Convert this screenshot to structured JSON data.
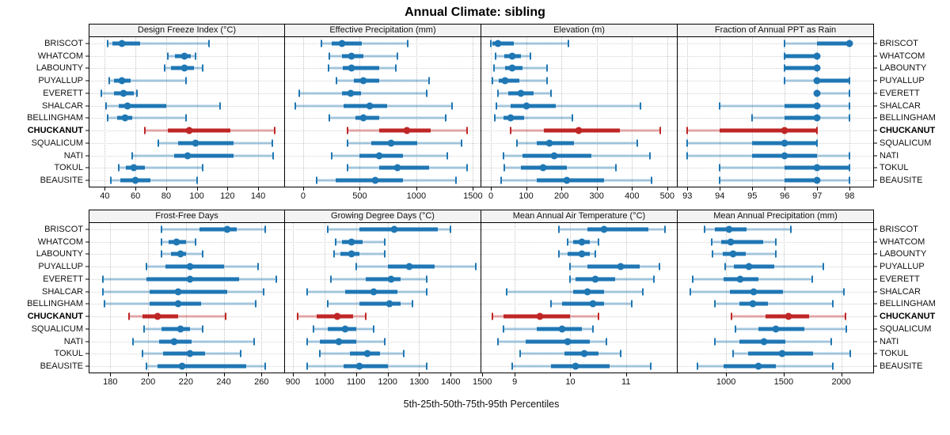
{
  "title": "Annual Climate: sibling",
  "caption": "5th-25th-50th-75th-95th Percentiles",
  "highlight_station": "CHUCKANUT",
  "colors": {
    "series": "#1f77b4",
    "highlight": "#bf2626",
    "band_alpha": 0.38,
    "header_bg": "#f3f3f3",
    "gridline": "#c4c4c4",
    "border": "#000000"
  },
  "stations": [
    "BRISCOT",
    "WHATCOM",
    "LABOUNTY",
    "PUYALLUP",
    "EVERETT",
    "SHALCAR",
    "BELLINGHAM",
    "CHUCKANUT",
    "SQUALICUM",
    "NATI",
    "TOKUL",
    "BEAUSITE"
  ],
  "chart_data": {
    "type": "percentile-range-dotplot",
    "percentiles": [
      5,
      25,
      50,
      75,
      95
    ],
    "legend_note": "thin light band = 5th-95th, thick band = 25th-75th, dot = 50th",
    "panels": [
      {
        "title": "Design Freeze Index (°C)",
        "grid": "top",
        "xlim": [
          30,
          157
        ],
        "ticks": [
          40,
          60,
          80,
          100,
          120,
          140
        ],
        "values": [
          [
            42,
            45,
            51,
            63,
            108
          ],
          [
            81,
            86,
            92,
            96,
            99
          ],
          [
            79,
            83,
            92,
            98,
            104
          ],
          [
            43,
            46,
            51,
            57,
            93
          ],
          [
            38,
            46,
            52,
            59,
            61
          ],
          [
            41,
            49,
            55,
            80,
            115
          ],
          [
            42,
            48,
            53,
            58,
            93
          ],
          [
            66,
            81,
            95,
            122,
            151
          ],
          [
            75,
            88,
            99,
            124,
            149
          ],
          [
            58,
            85,
            94,
            124,
            150
          ],
          [
            49,
            54,
            59,
            66,
            104
          ],
          [
            44,
            50,
            60,
            70,
            100
          ]
        ]
      },
      {
        "title": "Effective Precipitation (mm)",
        "grid": "top",
        "xlim": [
          -160,
          1560
        ],
        "ticks": [
          0,
          500,
          1000,
          1500
        ],
        "values": [
          [
            165,
            250,
            340,
            515,
            925
          ],
          [
            230,
            340,
            425,
            535,
            835
          ],
          [
            225,
            350,
            430,
            670,
            820
          ],
          [
            295,
            445,
            530,
            675,
            1115
          ],
          [
            -35,
            340,
            420,
            510,
            1095
          ],
          [
            -70,
            360,
            585,
            745,
            1315
          ],
          [
            230,
            465,
            535,
            675,
            1260
          ],
          [
            395,
            675,
            915,
            1130,
            1445
          ],
          [
            390,
            600,
            775,
            1005,
            1400
          ],
          [
            250,
            500,
            675,
            880,
            1275
          ],
          [
            390,
            670,
            835,
            1110,
            1445
          ],
          [
            120,
            285,
            635,
            885,
            1350
          ]
        ]
      },
      {
        "title": "Elevation (m)",
        "grid": "top",
        "xlim": [
          -27,
          525
        ],
        "ticks": [
          0,
          100,
          200,
          300,
          400,
          500
        ],
        "values": [
          [
            0,
            5,
            20,
            65,
            220
          ],
          [
            13,
            38,
            60,
            85,
            112
          ],
          [
            10,
            40,
            60,
            90,
            160
          ],
          [
            5,
            22,
            40,
            80,
            160
          ],
          [
            20,
            50,
            85,
            120,
            170
          ],
          [
            15,
            55,
            100,
            185,
            425
          ],
          [
            12,
            35,
            55,
            95,
            230
          ],
          [
            55,
            150,
            250,
            365,
            480
          ],
          [
            75,
            130,
            165,
            235,
            415
          ],
          [
            35,
            90,
            180,
            285,
            450
          ],
          [
            38,
            85,
            148,
            215,
            355
          ],
          [
            30,
            130,
            215,
            320,
            455
          ]
        ]
      },
      {
        "title": "Fraction of Annual PPT as Rain",
        "grid": "top",
        "xlim": [
          92.7,
          98.7
        ],
        "ticks": [
          93,
          94,
          95,
          96,
          97,
          98
        ],
        "values": [
          [
            96,
            97,
            98,
            98,
            98
          ],
          [
            96,
            96,
            97,
            97,
            97
          ],
          [
            96,
            96,
            97,
            97,
            97
          ],
          [
            96,
            97,
            97,
            98,
            98
          ],
          [
            97,
            97,
            97,
            97,
            98
          ],
          [
            94,
            96,
            97,
            97,
            98
          ],
          [
            95,
            96,
            97,
            97,
            98
          ],
          [
            93,
            94,
            96,
            97,
            97
          ],
          [
            93,
            95,
            96,
            97,
            97
          ],
          [
            93,
            95,
            96,
            97,
            98
          ],
          [
            94,
            96,
            97,
            98,
            98
          ],
          [
            94,
            96,
            97,
            97,
            98
          ]
        ]
      },
      {
        "title": "Frost-Free Days",
        "grid": "bottom",
        "xlim": [
          169,
          272
        ],
        "ticks": [
          180,
          200,
          220,
          240,
          260
        ],
        "values": [
          [
            207,
            227,
            242,
            247,
            262
          ],
          [
            207,
            211,
            215,
            220,
            225
          ],
          [
            207,
            212,
            217,
            220,
            229
          ],
          [
            199,
            209,
            222,
            240,
            258
          ],
          [
            176,
            199,
            222,
            248,
            268
          ],
          [
            176,
            201,
            216,
            242,
            261
          ],
          [
            177,
            201,
            216,
            228,
            257
          ],
          [
            190,
            197,
            205,
            216,
            241
          ],
          [
            198,
            207,
            217,
            222,
            229
          ],
          [
            192,
            206,
            214,
            223,
            256
          ],
          [
            197,
            208,
            222,
            230,
            249
          ],
          [
            199,
            205,
            218,
            252,
            262
          ]
        ]
      },
      {
        "title": "Growing Degree Days (°C)",
        "grid": "bottom",
        "xlim": [
          875,
          1492
        ],
        "ticks": [
          900,
          1000,
          1100,
          1200,
          1300,
          1400,
          1500
        ],
        "values": [
          [
            1010,
            1110,
            1220,
            1360,
            1400
          ],
          [
            1035,
            1055,
            1085,
            1120,
            1190
          ],
          [
            1030,
            1050,
            1085,
            1110,
            1190
          ],
          [
            1100,
            1200,
            1270,
            1350,
            1480
          ],
          [
            1020,
            1130,
            1210,
            1240,
            1325
          ],
          [
            945,
            1065,
            1155,
            1230,
            1325
          ],
          [
            1010,
            1110,
            1205,
            1240,
            1280
          ],
          [
            915,
            975,
            1040,
            1090,
            1130
          ],
          [
            965,
            1010,
            1065,
            1100,
            1155
          ],
          [
            945,
            985,
            1045,
            1100,
            1190
          ],
          [
            985,
            1080,
            1135,
            1175,
            1250
          ],
          [
            945,
            1060,
            1110,
            1200,
            1325
          ]
        ]
      },
      {
        "title": "Mean Annual Air Temperature (°C)",
        "grid": "bottom",
        "xlim": [
          8.4,
          11.9
        ],
        "ticks": [
          9,
          10,
          11
        ],
        "values": [
          [
            9.8,
            10.3,
            10.6,
            11.4,
            11.7
          ],
          [
            9.95,
            10.05,
            10.2,
            10.35,
            10.5
          ],
          [
            9.8,
            9.95,
            10.2,
            10.35,
            10.45
          ],
          [
            10.0,
            10.3,
            10.9,
            11.25,
            11.6
          ],
          [
            10.0,
            10.1,
            10.45,
            10.8,
            11.5
          ],
          [
            8.85,
            10.05,
            10.3,
            10.6,
            11.3
          ],
          [
            9.65,
            9.85,
            10.4,
            10.6,
            11.1
          ],
          [
            8.6,
            8.8,
            9.45,
            10.0,
            10.5
          ],
          [
            8.8,
            9.4,
            9.85,
            10.2,
            10.4
          ],
          [
            8.7,
            9.2,
            9.95,
            10.35,
            10.65
          ],
          [
            9.1,
            9.9,
            10.25,
            10.5,
            10.9
          ],
          [
            8.95,
            9.65,
            10.1,
            10.7,
            11.45
          ]
        ]
      },
      {
        "title": "Mean Annual Precipitation (mm)",
        "grid": "bottom",
        "xlim": [
          580,
          2270
        ],
        "ticks": [
          1000,
          1500,
          2000
        ],
        "values": [
          [
            815,
            905,
            1025,
            1180,
            1560
          ],
          [
            875,
            960,
            1040,
            1320,
            1430
          ],
          [
            885,
            970,
            1060,
            1170,
            1430
          ],
          [
            995,
            1065,
            1200,
            1420,
            1845
          ],
          [
            710,
            980,
            1125,
            1280,
            1745
          ],
          [
            690,
            1035,
            1240,
            1495,
            2020
          ],
          [
            900,
            1115,
            1230,
            1360,
            1925
          ],
          [
            1050,
            1340,
            1540,
            1720,
            2035
          ],
          [
            1080,
            1280,
            1430,
            1680,
            2040
          ],
          [
            900,
            1115,
            1330,
            1515,
            1910
          ],
          [
            1060,
            1190,
            1490,
            1755,
            2080
          ],
          [
            750,
            980,
            1280,
            1430,
            1925
          ]
        ]
      }
    ]
  }
}
